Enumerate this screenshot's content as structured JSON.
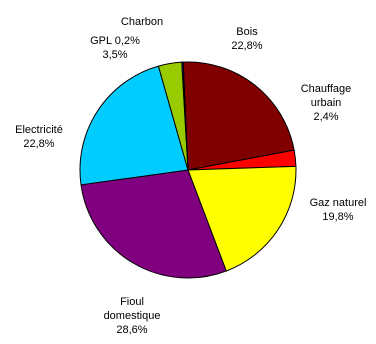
{
  "chart_data": {
    "type": "pie",
    "title": "",
    "slices": [
      {
        "category": "Bois",
        "value": 22.8,
        "label": "22,8%",
        "color": "#800000"
      },
      {
        "category": "Chauffage urbain",
        "value": 2.4,
        "label": "2,4%",
        "color": "#ff0000"
      },
      {
        "category": "Gaz naturel",
        "value": 19.8,
        "label": "19,8%",
        "color": "#ffff00"
      },
      {
        "category": "Fioul domestique",
        "value": 28.6,
        "label": "28,6%",
        "color": "#800080"
      },
      {
        "category": "Electricité",
        "value": 22.8,
        "label": "22,8%",
        "color": "#00ccff"
      },
      {
        "category": "GPL",
        "value": 3.5,
        "label": "3,5%",
        "color": "#99cc00"
      },
      {
        "category": "Charbon",
        "value": 0.2,
        "label": "0,2%",
        "color": "#333399"
      }
    ],
    "label_lines": {
      "Bois": [
        "Bois",
        "22,8%"
      ],
      "Chauffage urbain": [
        "Chauffage",
        "urbain",
        "2,4%"
      ],
      "Gaz naturel": [
        "Gaz naturel",
        "19,8%"
      ],
      "Fioul domestique": [
        "Fioul",
        "domestique",
        "28,6%"
      ],
      "Electricité": [
        "Electricité",
        "22,8%"
      ],
      "GPL": [
        "GPL 0,2%",
        "3,5%"
      ],
      "Charbon": [
        "Charbon"
      ]
    },
    "legend": "none"
  }
}
